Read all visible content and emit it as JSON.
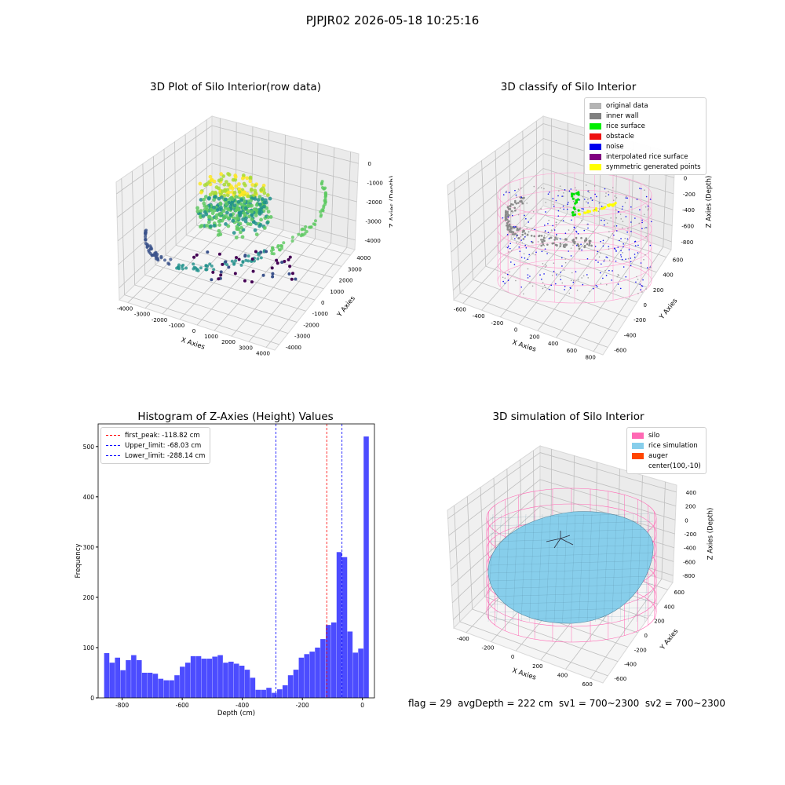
{
  "suptitle": "PJPJR02 2026-05-18 10:25:16",
  "footer": "flag = 29  avgDepth = 222 cm  sv1 = 700~2300  sv2 = 700~2300",
  "chart_data": [
    {
      "type": "scatter",
      "title": "3D Plot of Silo Interior(row data)",
      "xlabel": "X Axies",
      "ylabel": "Y Axies",
      "zlabel": "Z Axies (Depth)",
      "xticks": [
        "-4000",
        "-3000",
        "-2000",
        "-1000",
        "0",
        "1000",
        "2000",
        "3000",
        "4000"
      ],
      "yticks": [
        "-4000",
        "-3000",
        "-2000",
        "-1000",
        "0",
        "1000",
        "2000",
        "3000",
        "4000"
      ],
      "zticks": [
        "-4000",
        "-3000",
        "-2000",
        "-1000",
        "0"
      ],
      "xlim": [
        -4000,
        4000
      ],
      "ylim": [
        -4000,
        4000
      ],
      "zlim": [
        -4500,
        0
      ],
      "colormap": "viridis",
      "grid": true
    },
    {
      "type": "scatter",
      "title": "3D classify of Silo Interior",
      "xlabel": "X Axies",
      "ylabel": "Y Axies",
      "zlabel": "Z Axies (Depth)",
      "xticks": [
        "-600",
        "-400",
        "-200",
        "0",
        "200",
        "400",
        "600",
        "800"
      ],
      "yticks": [
        "-600",
        "-400",
        "-200",
        "0",
        "200",
        "400",
        "600"
      ],
      "zticks": [
        "-800",
        "-600",
        "-400",
        "-200",
        "0",
        "200"
      ],
      "xlim": [
        -600,
        800
      ],
      "ylim": [
        -600,
        600
      ],
      "zlim": [
        -900,
        300
      ],
      "legend": [
        {
          "label": "original data",
          "color": "#b4b4b4"
        },
        {
          "label": "inner wall",
          "color": "#808080"
        },
        {
          "label": "rice surface",
          "color": "#00ee00"
        },
        {
          "label": "obstacle",
          "color": "#ee1111"
        },
        {
          "label": "noise",
          "color": "#0000ee"
        },
        {
          "label": "interpolated rice surface",
          "color": "#800080"
        },
        {
          "label": "symmetric generated points",
          "color": "#ffff00"
        }
      ],
      "legend_position": "upper-right",
      "grid": true
    },
    {
      "type": "bar",
      "title": "Histogram of Z-Axies (Height) Values",
      "xlabel": "Depth (cm)",
      "ylabel": "Frequency",
      "xlim": [
        -880,
        40
      ],
      "ylim": [
        0,
        545
      ],
      "xticks": [
        -800,
        -600,
        -400,
        -200,
        0
      ],
      "yticks": [
        0,
        100,
        200,
        300,
        400,
        500
      ],
      "bin_edges_start": -860,
      "bin_width": 18,
      "values": [
        89,
        70,
        80,
        55,
        75,
        85,
        75,
        50,
        50,
        48,
        38,
        35,
        35,
        45,
        62,
        70,
        83,
        83,
        78,
        78,
        82,
        85,
        70,
        72,
        68,
        64,
        56,
        40,
        16,
        16,
        20,
        10,
        17,
        25,
        45,
        56,
        80,
        87,
        92,
        100,
        117,
        145,
        150,
        290,
        280,
        132,
        90,
        98,
        520
      ],
      "color": "#0000ff",
      "lines": [
        {
          "label": "first_peak: -118.82 cm",
          "x": -118.82,
          "color": "#ff0000"
        },
        {
          "label": "Upper_limit: -68.03 cm",
          "x": -68.03,
          "color": "#0000ff"
        },
        {
          "label": "Lower_limit: -288.14 cm",
          "x": -288.14,
          "color": "#0000ff"
        }
      ],
      "legend_position": "upper-left"
    },
    {
      "type": "surface",
      "title": "3D simulation of Silo Interior",
      "xlabel": "X Axies",
      "ylabel": "Y Axies",
      "zlabel": "Z Axies (Depth)",
      "xticks": [
        "-400",
        "-200",
        "0",
        "200",
        "400",
        "600"
      ],
      "yticks": [
        "-600",
        "-400",
        "-200",
        "0",
        "200",
        "400",
        "600"
      ],
      "zticks": [
        "-800",
        "-600",
        "-400",
        "-200",
        "0",
        "200",
        "400"
      ],
      "legend": [
        {
          "label": "silo",
          "color": "#ff69b4"
        },
        {
          "label": "rice simulation",
          "color": "#87ceeb"
        },
        {
          "label": "auger",
          "color": "#ff4500"
        },
        {
          "label": "center(100,-10)",
          "color": ""
        }
      ],
      "legend_position": "upper-right",
      "grid": true
    }
  ]
}
